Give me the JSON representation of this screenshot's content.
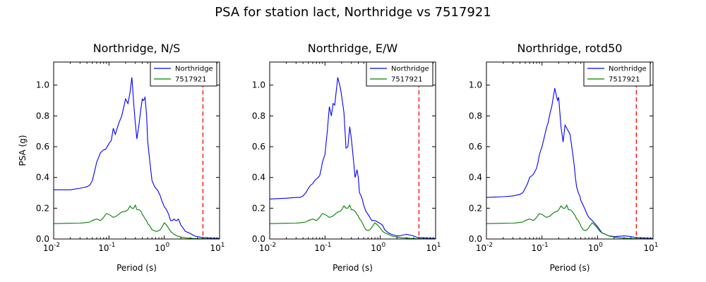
{
  "suptitle": "PSA for station lact, Northridge vs 7517921",
  "chart_data": [
    {
      "type": "line",
      "title": "Northridge, N/S",
      "xlabel": "Period (s)",
      "ylabel": "PSA (g)",
      "xscale": "log",
      "xlim": [
        0.01,
        10
      ],
      "ylim": [
        0,
        1.15
      ],
      "xticks": [
        {
          "v": 0.01,
          "b": "10",
          "e": "-2"
        },
        {
          "v": 0.1,
          "b": "10",
          "e": "-1"
        },
        {
          "v": 1,
          "b": "10",
          "e": "0"
        },
        {
          "v": 10,
          "b": "10",
          "e": "1"
        }
      ],
      "yticks": [
        "0.0",
        "0.2",
        "0.4",
        "0.6",
        "0.8",
        "1.0"
      ],
      "legend_position": "top-right",
      "vline": {
        "x": 5,
        "color": "#ff0000",
        "style": "dashed"
      },
      "series": [
        {
          "name": "Northridge",
          "color": "#0000ff",
          "x": [
            0.01,
            0.02,
            0.03,
            0.035,
            0.04,
            0.045,
            0.05,
            0.055,
            0.06,
            0.065,
            0.07,
            0.075,
            0.08,
            0.085,
            0.09,
            0.1,
            0.11,
            0.12,
            0.13,
            0.15,
            0.17,
            0.2,
            0.22,
            0.24,
            0.26,
            0.28,
            0.3,
            0.32,
            0.35,
            0.38,
            0.4,
            0.42,
            0.45,
            0.48,
            0.5,
            0.55,
            0.6,
            0.65,
            0.7,
            0.75,
            0.8,
            0.85,
            0.9,
            0.95,
            1.0,
            1.1,
            1.2,
            1.3,
            1.4,
            1.5,
            1.6,
            1.7,
            1.8,
            1.9,
            2.0,
            2.2,
            2.4,
            2.6,
            2.8,
            3.0,
            3.5,
            4.0,
            4.5,
            5.0,
            6.0,
            7.0,
            8.0,
            10.0
          ],
          "y": [
            0.32,
            0.32,
            0.33,
            0.335,
            0.34,
            0.35,
            0.38,
            0.44,
            0.5,
            0.53,
            0.56,
            0.57,
            0.58,
            0.58,
            0.59,
            0.62,
            0.64,
            0.72,
            0.68,
            0.75,
            0.8,
            0.91,
            0.88,
            0.95,
            1.05,
            0.88,
            0.75,
            0.65,
            0.75,
            0.85,
            0.91,
            0.9,
            0.92,
            0.8,
            0.64,
            0.5,
            0.38,
            0.35,
            0.33,
            0.32,
            0.3,
            0.28,
            0.25,
            0.23,
            0.21,
            0.19,
            0.16,
            0.12,
            0.12,
            0.13,
            0.12,
            0.12,
            0.13,
            0.11,
            0.09,
            0.07,
            0.05,
            0.045,
            0.04,
            0.035,
            0.02,
            0.015,
            0.012,
            0.01,
            0.008,
            0.006,
            0.005,
            0.004
          ]
        },
        {
          "name": "7517921",
          "color": "#008000",
          "x": [
            0.01,
            0.02,
            0.03,
            0.035,
            0.04,
            0.045,
            0.05,
            0.055,
            0.06,
            0.065,
            0.07,
            0.075,
            0.08,
            0.085,
            0.09,
            0.1,
            0.11,
            0.12,
            0.13,
            0.15,
            0.17,
            0.2,
            0.22,
            0.24,
            0.26,
            0.28,
            0.3,
            0.32,
            0.35,
            0.38,
            0.4,
            0.42,
            0.45,
            0.48,
            0.5,
            0.55,
            0.6,
            0.65,
            0.7,
            0.75,
            0.8,
            0.85,
            0.9,
            0.95,
            1.0,
            1.1,
            1.2,
            1.3,
            1.4,
            1.5,
            1.6,
            1.7,
            1.8,
            1.9,
            2.0,
            2.2,
            2.4,
            2.6,
            2.8,
            3.0,
            3.5,
            4.0,
            4.5,
            5.0,
            6.0,
            7.0,
            8.0,
            10.0
          ],
          "y": [
            0.1,
            0.102,
            0.103,
            0.105,
            0.108,
            0.11,
            0.12,
            0.125,
            0.13,
            0.125,
            0.12,
            0.13,
            0.14,
            0.155,
            0.165,
            0.16,
            0.15,
            0.14,
            0.145,
            0.16,
            0.175,
            0.18,
            0.19,
            0.215,
            0.2,
            0.2,
            0.22,
            0.19,
            0.19,
            0.18,
            0.16,
            0.15,
            0.13,
            0.12,
            0.1,
            0.085,
            0.06,
            0.055,
            0.05,
            0.05,
            0.055,
            0.06,
            0.075,
            0.09,
            0.105,
            0.09,
            0.07,
            0.05,
            0.04,
            0.03,
            0.025,
            0.02,
            0.018,
            0.015,
            0.013,
            0.01,
            0.008,
            0.006,
            0.005,
            0.004,
            0.003,
            0.002,
            0.002,
            0.002,
            0.001,
            0.001,
            0.001,
            0.001
          ]
        }
      ]
    },
    {
      "type": "line",
      "title": "Northridge, E/W",
      "xlabel": "Period (s)",
      "ylabel": "",
      "xscale": "log",
      "xlim": [
        0.01,
        10
      ],
      "ylim": [
        0,
        1.15
      ],
      "xticks": [
        {
          "v": 0.01,
          "b": "10",
          "e": "-2"
        },
        {
          "v": 0.1,
          "b": "10",
          "e": "-1"
        },
        {
          "v": 1,
          "b": "10",
          "e": "0"
        },
        {
          "v": 10,
          "b": "10",
          "e": "1"
        }
      ],
      "yticks": [
        "0.0",
        "0.2",
        "0.4",
        "0.6",
        "0.8",
        "1.0"
      ],
      "legend_position": "top-right",
      "vline": {
        "x": 5,
        "color": "#ff0000",
        "style": "dashed"
      },
      "series": [
        {
          "name": "Northridge",
          "color": "#0000ff",
          "x": [
            0.01,
            0.02,
            0.03,
            0.035,
            0.04,
            0.045,
            0.05,
            0.055,
            0.06,
            0.065,
            0.07,
            0.075,
            0.08,
            0.085,
            0.09,
            0.1,
            0.11,
            0.12,
            0.13,
            0.14,
            0.15,
            0.17,
            0.19,
            0.2,
            0.22,
            0.24,
            0.26,
            0.28,
            0.3,
            0.32,
            0.35,
            0.38,
            0.4,
            0.42,
            0.45,
            0.48,
            0.5,
            0.55,
            0.6,
            0.65,
            0.7,
            0.8,
            0.9,
            1.0,
            1.1,
            1.2,
            1.4,
            1.6,
            1.8,
            2.0,
            2.2,
            2.5,
            3.0,
            3.5,
            4.0,
            4.5,
            5.0,
            6.0,
            7.0,
            8.0,
            10.0
          ],
          "y": [
            0.26,
            0.265,
            0.27,
            0.27,
            0.28,
            0.3,
            0.33,
            0.35,
            0.36,
            0.38,
            0.39,
            0.4,
            0.41,
            0.45,
            0.5,
            0.55,
            0.7,
            0.86,
            0.8,
            0.88,
            0.87,
            1.05,
            0.98,
            0.93,
            0.82,
            0.59,
            0.6,
            0.73,
            0.65,
            0.55,
            0.4,
            0.45,
            0.4,
            0.3,
            0.28,
            0.25,
            0.22,
            0.18,
            0.16,
            0.14,
            0.12,
            0.12,
            0.11,
            0.1,
            0.09,
            0.06,
            0.04,
            0.03,
            0.025,
            0.02,
            0.02,
            0.025,
            0.03,
            0.025,
            0.02,
            0.012,
            0.01,
            0.008,
            0.006,
            0.005,
            0.004
          ]
        },
        {
          "name": "7517921",
          "color": "#008000",
          "x": [
            0.01,
            0.02,
            0.03,
            0.035,
            0.04,
            0.045,
            0.05,
            0.055,
            0.06,
            0.065,
            0.07,
            0.075,
            0.08,
            0.085,
            0.09,
            0.1,
            0.11,
            0.12,
            0.13,
            0.14,
            0.15,
            0.17,
            0.19,
            0.2,
            0.22,
            0.24,
            0.26,
            0.28,
            0.3,
            0.32,
            0.35,
            0.38,
            0.4,
            0.42,
            0.45,
            0.48,
            0.5,
            0.55,
            0.6,
            0.65,
            0.7,
            0.8,
            0.9,
            1.0,
            1.1,
            1.2,
            1.4,
            1.6,
            1.8,
            2.0,
            2.2,
            2.5,
            3.0,
            3.5,
            4.0,
            4.5,
            5.0,
            6.0,
            7.0,
            8.0,
            10.0
          ],
          "y": [
            0.1,
            0.102,
            0.103,
            0.105,
            0.108,
            0.11,
            0.12,
            0.125,
            0.13,
            0.125,
            0.12,
            0.13,
            0.14,
            0.155,
            0.165,
            0.16,
            0.15,
            0.14,
            0.145,
            0.15,
            0.16,
            0.175,
            0.18,
            0.19,
            0.215,
            0.2,
            0.2,
            0.22,
            0.19,
            0.19,
            0.18,
            0.16,
            0.15,
            0.13,
            0.12,
            0.1,
            0.085,
            0.06,
            0.055,
            0.06,
            0.075,
            0.105,
            0.09,
            0.07,
            0.05,
            0.04,
            0.03,
            0.02,
            0.015,
            0.013,
            0.01,
            0.008,
            0.006,
            0.004,
            0.003,
            0.002,
            0.002,
            0.001,
            0.001,
            0.001,
            0.001
          ]
        }
      ]
    },
    {
      "type": "line",
      "title": "Northridge, rotd50",
      "xlabel": "Period (s)",
      "ylabel": "",
      "xscale": "log",
      "xlim": [
        0.01,
        10
      ],
      "ylim": [
        0,
        1.15
      ],
      "xticks": [
        {
          "v": 0.01,
          "b": "10",
          "e": "-2"
        },
        {
          "v": 0.1,
          "b": "10",
          "e": "-1"
        },
        {
          "v": 1,
          "b": "10",
          "e": "0"
        },
        {
          "v": 10,
          "b": "10",
          "e": "1"
        }
      ],
      "yticks": [
        "0.0",
        "0.2",
        "0.4",
        "0.6",
        "0.8",
        "1.0"
      ],
      "legend_position": "top-right",
      "vline": {
        "x": 5,
        "color": "#ff0000",
        "style": "dashed"
      },
      "series": [
        {
          "name": "Northridge",
          "color": "#0000ff",
          "x": [
            0.01,
            0.02,
            0.03,
            0.035,
            0.04,
            0.045,
            0.05,
            0.055,
            0.06,
            0.065,
            0.07,
            0.075,
            0.08,
            0.085,
            0.09,
            0.1,
            0.11,
            0.12,
            0.13,
            0.14,
            0.15,
            0.17,
            0.19,
            0.2,
            0.22,
            0.24,
            0.26,
            0.28,
            0.3,
            0.32,
            0.35,
            0.38,
            0.4,
            0.42,
            0.45,
            0.48,
            0.5,
            0.55,
            0.6,
            0.65,
            0.7,
            0.8,
            0.9,
            1.0,
            1.1,
            1.2,
            1.4,
            1.6,
            1.8,
            2.0,
            2.5,
            3.0,
            3.5,
            4.0,
            4.5,
            5.0,
            6.0,
            7.0,
            8.0,
            10.0
          ],
          "y": [
            0.27,
            0.275,
            0.28,
            0.285,
            0.29,
            0.3,
            0.33,
            0.36,
            0.4,
            0.41,
            0.42,
            0.44,
            0.46,
            0.5,
            0.55,
            0.6,
            0.66,
            0.72,
            0.76,
            0.82,
            0.86,
            0.98,
            0.9,
            0.92,
            0.73,
            0.63,
            0.74,
            0.72,
            0.7,
            0.68,
            0.58,
            0.48,
            0.4,
            0.34,
            0.3,
            0.28,
            0.25,
            0.22,
            0.19,
            0.16,
            0.14,
            0.12,
            0.1,
            0.08,
            0.06,
            0.04,
            0.03,
            0.02,
            0.018,
            0.015,
            0.018,
            0.02,
            0.018,
            0.015,
            0.012,
            0.01,
            0.008,
            0.006,
            0.005,
            0.004
          ]
        },
        {
          "name": "7517921",
          "color": "#008000",
          "x": [
            0.01,
            0.02,
            0.03,
            0.035,
            0.04,
            0.045,
            0.05,
            0.055,
            0.06,
            0.065,
            0.07,
            0.075,
            0.08,
            0.085,
            0.09,
            0.1,
            0.11,
            0.12,
            0.13,
            0.14,
            0.15,
            0.17,
            0.19,
            0.2,
            0.22,
            0.24,
            0.26,
            0.28,
            0.3,
            0.32,
            0.35,
            0.38,
            0.4,
            0.42,
            0.45,
            0.48,
            0.5,
            0.55,
            0.6,
            0.65,
            0.7,
            0.8,
            0.9,
            1.0,
            1.1,
            1.2,
            1.4,
            1.6,
            1.8,
            2.0,
            2.5,
            3.0,
            3.5,
            4.0,
            4.5,
            5.0,
            6.0,
            7.0,
            8.0,
            10.0
          ],
          "y": [
            0.1,
            0.102,
            0.103,
            0.105,
            0.108,
            0.11,
            0.12,
            0.125,
            0.13,
            0.125,
            0.12,
            0.13,
            0.14,
            0.155,
            0.165,
            0.16,
            0.15,
            0.14,
            0.145,
            0.15,
            0.16,
            0.175,
            0.18,
            0.19,
            0.215,
            0.2,
            0.2,
            0.22,
            0.19,
            0.19,
            0.18,
            0.16,
            0.15,
            0.13,
            0.12,
            0.1,
            0.085,
            0.06,
            0.055,
            0.06,
            0.075,
            0.105,
            0.09,
            0.07,
            0.05,
            0.04,
            0.03,
            0.02,
            0.015,
            0.013,
            0.008,
            0.006,
            0.004,
            0.003,
            0.002,
            0.002,
            0.001,
            0.001,
            0.001,
            0.001
          ]
        }
      ]
    }
  ]
}
